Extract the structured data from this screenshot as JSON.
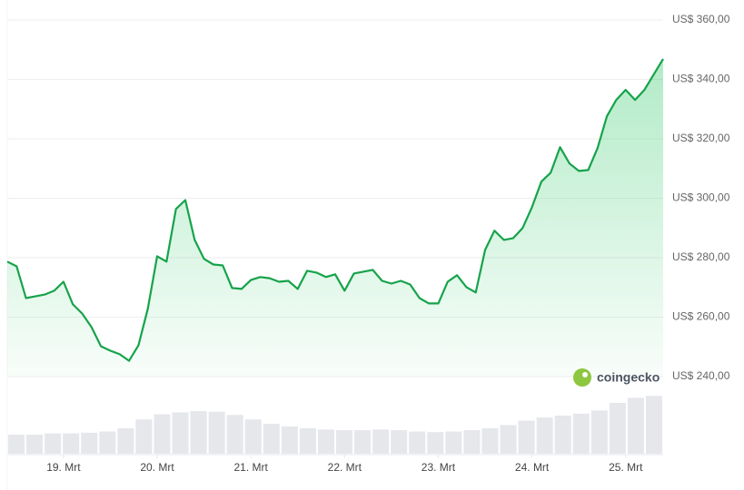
{
  "chart_data": [
    {
      "type": "line",
      "watermark": "coingecko",
      "xlim": [
        -0.6,
        6.4
      ],
      "xticks": [
        {
          "value": 0,
          "label": "19. Mrt"
        },
        {
          "value": 1,
          "label": "20. Mrt"
        },
        {
          "value": 2,
          "label": "21. Mrt"
        },
        {
          "value": 3,
          "label": "22. Mrt"
        },
        {
          "value": 4,
          "label": "23. Mrt"
        },
        {
          "value": 5,
          "label": "24. Mrt"
        },
        {
          "value": 6,
          "label": "25. Mrt"
        }
      ],
      "ylim": [
        240,
        360
      ],
      "yticks": [
        {
          "value": 240,
          "label": "US$ 240,00"
        },
        {
          "value": 260,
          "label": "US$ 260,00"
        },
        {
          "value": 280,
          "label": "US$ 280,00"
        },
        {
          "value": 300,
          "label": "US$ 300,00"
        },
        {
          "value": 320,
          "label": "US$ 320,00"
        },
        {
          "value": 340,
          "label": "US$ 340,00"
        },
        {
          "value": 360,
          "label": "US$ 360,00"
        }
      ],
      "grid": true,
      "color": "#16a34a",
      "x": [
        -0.6,
        -0.5,
        -0.4,
        -0.3,
        -0.2,
        -0.1,
        0,
        0.1,
        0.2,
        0.3,
        0.4,
        0.5,
        0.6,
        0.7,
        0.8,
        0.9,
        1.0,
        1.1,
        1.2,
        1.3,
        1.4,
        1.5,
        1.6,
        1.7,
        1.8,
        1.9,
        2.0,
        2.1,
        2.2,
        2.3,
        2.4,
        2.5,
        2.6,
        2.7,
        2.8,
        2.9,
        3.0,
        3.1,
        3.2,
        3.3,
        3.4,
        3.5,
        3.6,
        3.7,
        3.8,
        3.9,
        4.0,
        4.1,
        4.2,
        4.3,
        4.4,
        4.5,
        4.6,
        4.7,
        4.8,
        4.9,
        5.0,
        5.1,
        5.2,
        5.3,
        5.4,
        5.5,
        5.6,
        5.7,
        5.8,
        5.9,
        6.0,
        6.1,
        6.2,
        6.3,
        6.4
      ],
      "values": [
        278.7,
        277.1,
        266.4,
        267.0,
        267.6,
        268.9,
        271.9,
        264.3,
        261.2,
        256.6,
        250.2,
        248.7,
        247.5,
        245.3,
        250.5,
        262.8,
        280.5,
        278.7,
        296.4,
        299.4,
        286.0,
        279.6,
        277.7,
        277.4,
        269.8,
        269.5,
        272.5,
        273.5,
        273.1,
        271.9,
        272.2,
        269.5,
        275.6,
        275.0,
        273.5,
        274.4,
        268.9,
        274.7,
        275.3,
        275.9,
        272.2,
        271.3,
        272.2,
        271.0,
        266.4,
        264.6,
        264.6,
        271.9,
        274.1,
        270.1,
        268.3,
        282.6,
        289.1,
        286.0,
        286.6,
        290.0,
        297.0,
        305.6,
        308.6,
        317.2,
        311.7,
        309.2,
        309.5,
        316.9,
        327.6,
        333.1,
        336.5,
        333.1,
        336.5,
        341.7,
        346.9
      ]
    },
    {
      "type": "bar",
      "color": "#e5e7eb",
      "ylim": [
        0,
        100
      ],
      "categories": [
        null,
        null,
        null,
        null,
        null,
        null,
        null,
        null,
        null,
        null,
        null,
        null,
        null,
        null,
        null,
        null,
        null,
        null,
        null,
        null,
        null,
        null,
        null,
        null,
        null,
        null,
        null,
        null,
        null,
        null,
        null,
        null,
        null,
        null,
        null,
        null
      ],
      "values": [
        30,
        30,
        32,
        32,
        33,
        35,
        40,
        54,
        62,
        65,
        67,
        66,
        61,
        54,
        47,
        43,
        40,
        38,
        37,
        37,
        38,
        37,
        35,
        34,
        35,
        37,
        40,
        45,
        52,
        57,
        60,
        63,
        68,
        80,
        88,
        91
      ]
    }
  ]
}
